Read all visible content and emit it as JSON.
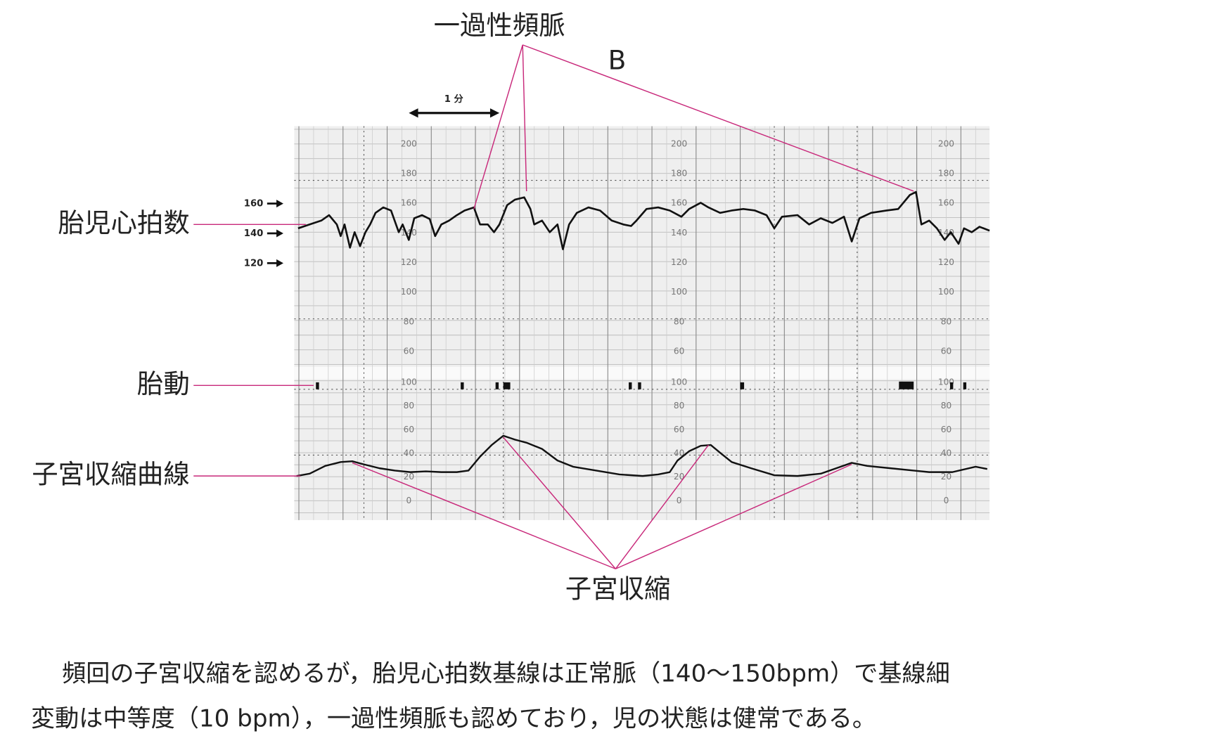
{
  "annotations": {
    "tachycardia": "一過性頻脈",
    "panel_label": "B",
    "time_scale": "1 分",
    "contraction": "子宮収縮"
  },
  "rows": {
    "fhr": "胎児心拍数",
    "movement": "胎動",
    "uc": "子宮収縮曲線"
  },
  "fhr_markers": [
    "160",
    "140",
    "120"
  ],
  "fhr_scale": [
    "200",
    "180",
    "160",
    "140",
    "120",
    "100",
    "80",
    "60"
  ],
  "uc_scale": [
    "100",
    "80",
    "60",
    "40",
    "20",
    "0"
  ],
  "caption": [
    "頻回の子宮収縮を認めるが，胎児心拍数基線は正常脈（140〜150bpm）で基線細",
    "変動は中等度（10 bpm），一過性頻脈も認めており，児の状態は健常である。"
  ]
}
